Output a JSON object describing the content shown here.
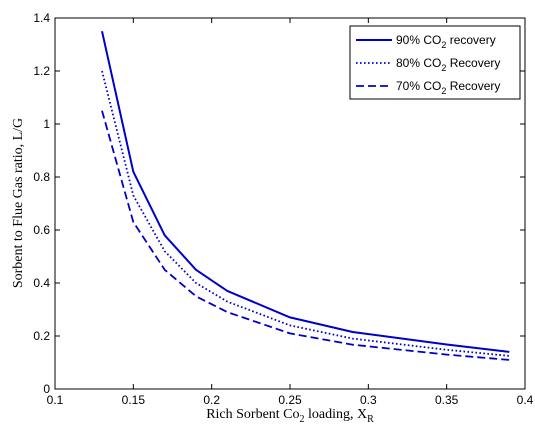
{
  "chart_data": {
    "type": "line",
    "title": "",
    "xlabel": "Rich Sorbent Co",
    "xlabel_sub": "2",
    "xlabel_after": " loading, X",
    "xlabel_sub2": "R",
    "ylabel": "Sorbent to Flue Gas ratio, L/G",
    "xlim": [
      0.1,
      0.4
    ],
    "ylim": [
      0,
      1.4
    ],
    "xticks": [
      0.1,
      0.15,
      0.2,
      0.25,
      0.3,
      0.35,
      0.4
    ],
    "yticks": [
      0,
      0.2,
      0.4,
      0.6,
      0.8,
      1,
      1.2,
      1.4
    ],
    "xtick_labels": [
      "0.1",
      "0.15",
      "0.2",
      "0.25",
      "0.3",
      "0.35",
      "0.4"
    ],
    "ytick_labels": [
      "0",
      "0.2",
      "0.4",
      "0.6",
      "0.8",
      "1",
      "1.2",
      "1.4"
    ],
    "grid": false,
    "legend_position": "top-right",
    "x": [
      0.13,
      0.15,
      0.17,
      0.19,
      0.21,
      0.25,
      0.29,
      0.35,
      0.39
    ],
    "series": [
      {
        "legend_pre": "90% CO",
        "legend_sub": "2",
        "legend_post": " recovery",
        "style": "solid",
        "color": "#0000cc",
        "values": [
          1.35,
          0.82,
          0.58,
          0.45,
          0.37,
          0.27,
          0.215,
          0.168,
          0.14
        ]
      },
      {
        "legend_pre": "80% CO",
        "legend_sub": "2",
        "legend_post": " Recovery",
        "style": "dotted",
        "color": "#0000cc",
        "values": [
          1.2,
          0.73,
          0.52,
          0.4,
          0.33,
          0.24,
          0.19,
          0.148,
          0.125
        ]
      },
      {
        "legend_pre": "70% CO",
        "legend_sub": "2",
        "legend_post": " Recovery",
        "style": "dashed",
        "color": "#0000cc",
        "values": [
          1.05,
          0.63,
          0.45,
          0.35,
          0.29,
          0.21,
          0.167,
          0.13,
          0.11
        ]
      }
    ]
  }
}
